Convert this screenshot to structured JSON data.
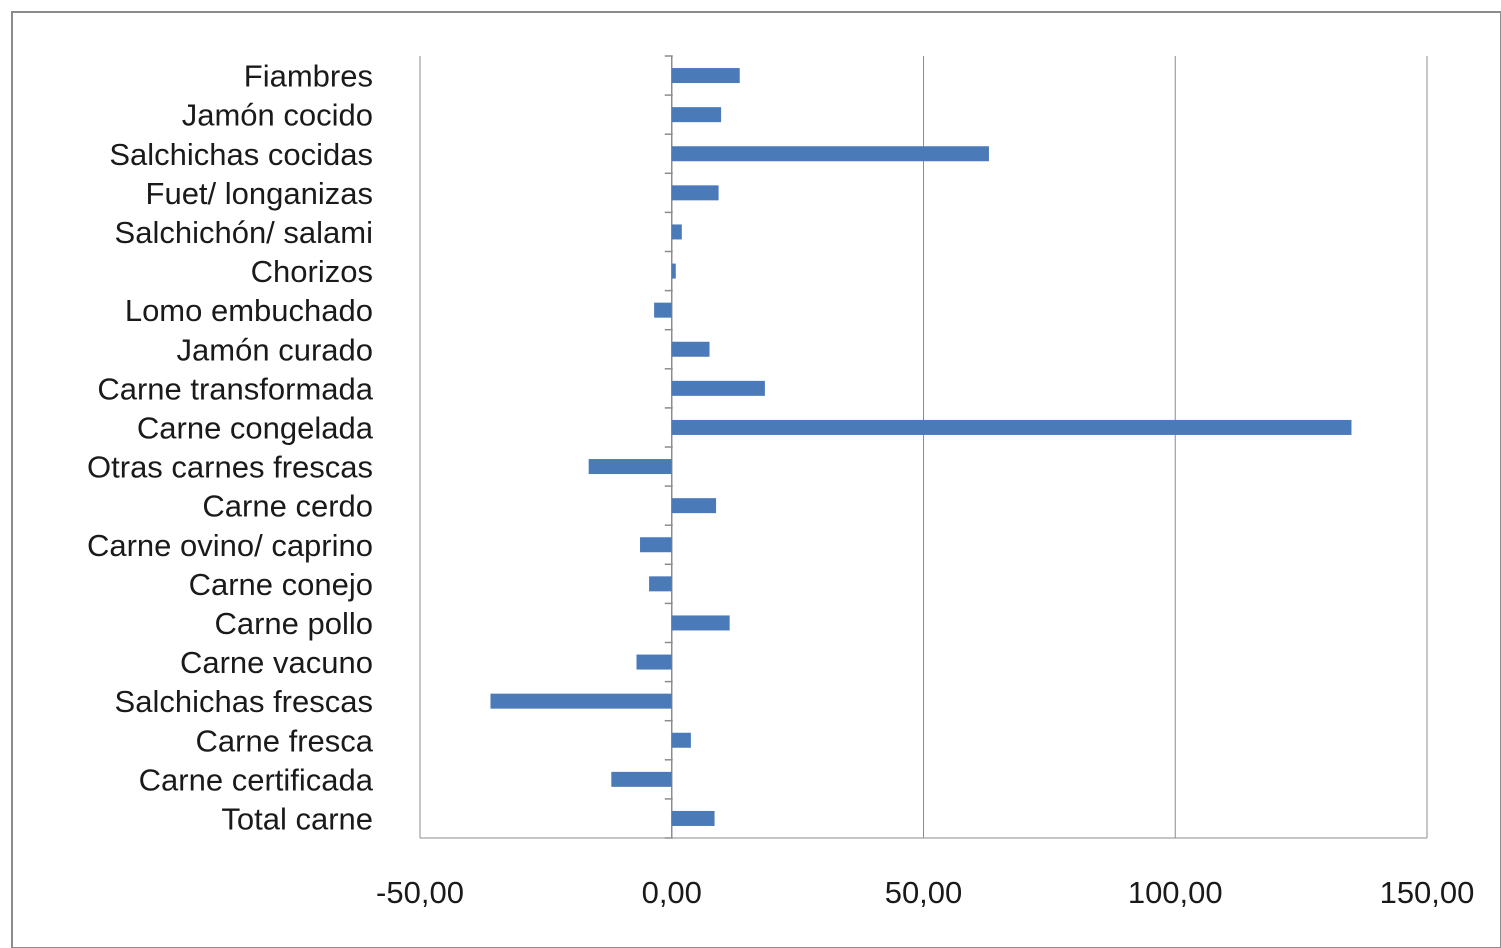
{
  "colors": {
    "bar": "#4a7ab8",
    "gridline": "#8c8c8c",
    "axis": "#8c8c8c",
    "frame": "#8c8c8c",
    "background": "#ffffff"
  },
  "chart_data": {
    "type": "bar",
    "orientation": "horizontal",
    "title": "",
    "xlabel": "",
    "ylabel": "",
    "categories": [
      "Fiambres",
      "Jamón cocido",
      "Salchichas cocidas",
      "Fuet/ longanizas",
      "Salchichón/ salami",
      "Chorizos",
      "Lomo embuchado",
      "Jamón curado",
      "Carne transformada",
      "Carne congelada",
      "Otras carnes frescas",
      "Carne cerdo",
      "Carne ovino/ caprino",
      "Carne conejo",
      "Carne pollo",
      "Carne vacuno",
      "Salchichas frescas",
      "Carne fresca",
      "Carne certificada",
      "Total carne"
    ],
    "values": [
      13.5,
      9.8,
      63.0,
      9.3,
      2.0,
      0.8,
      -3.5,
      7.5,
      18.5,
      135.0,
      -16.5,
      8.8,
      -6.3,
      -4.5,
      11.5,
      -7.0,
      -36.0,
      3.8,
      -12.0,
      8.5
    ],
    "xlim": [
      -50,
      150
    ],
    "xticks": [
      -50,
      0,
      50,
      100,
      150
    ],
    "xtick_labels": [
      "-50,00",
      "0,00",
      "50,00",
      "100,00",
      "150,00"
    ],
    "grid": "vertical major gridlines",
    "legend": "none"
  }
}
